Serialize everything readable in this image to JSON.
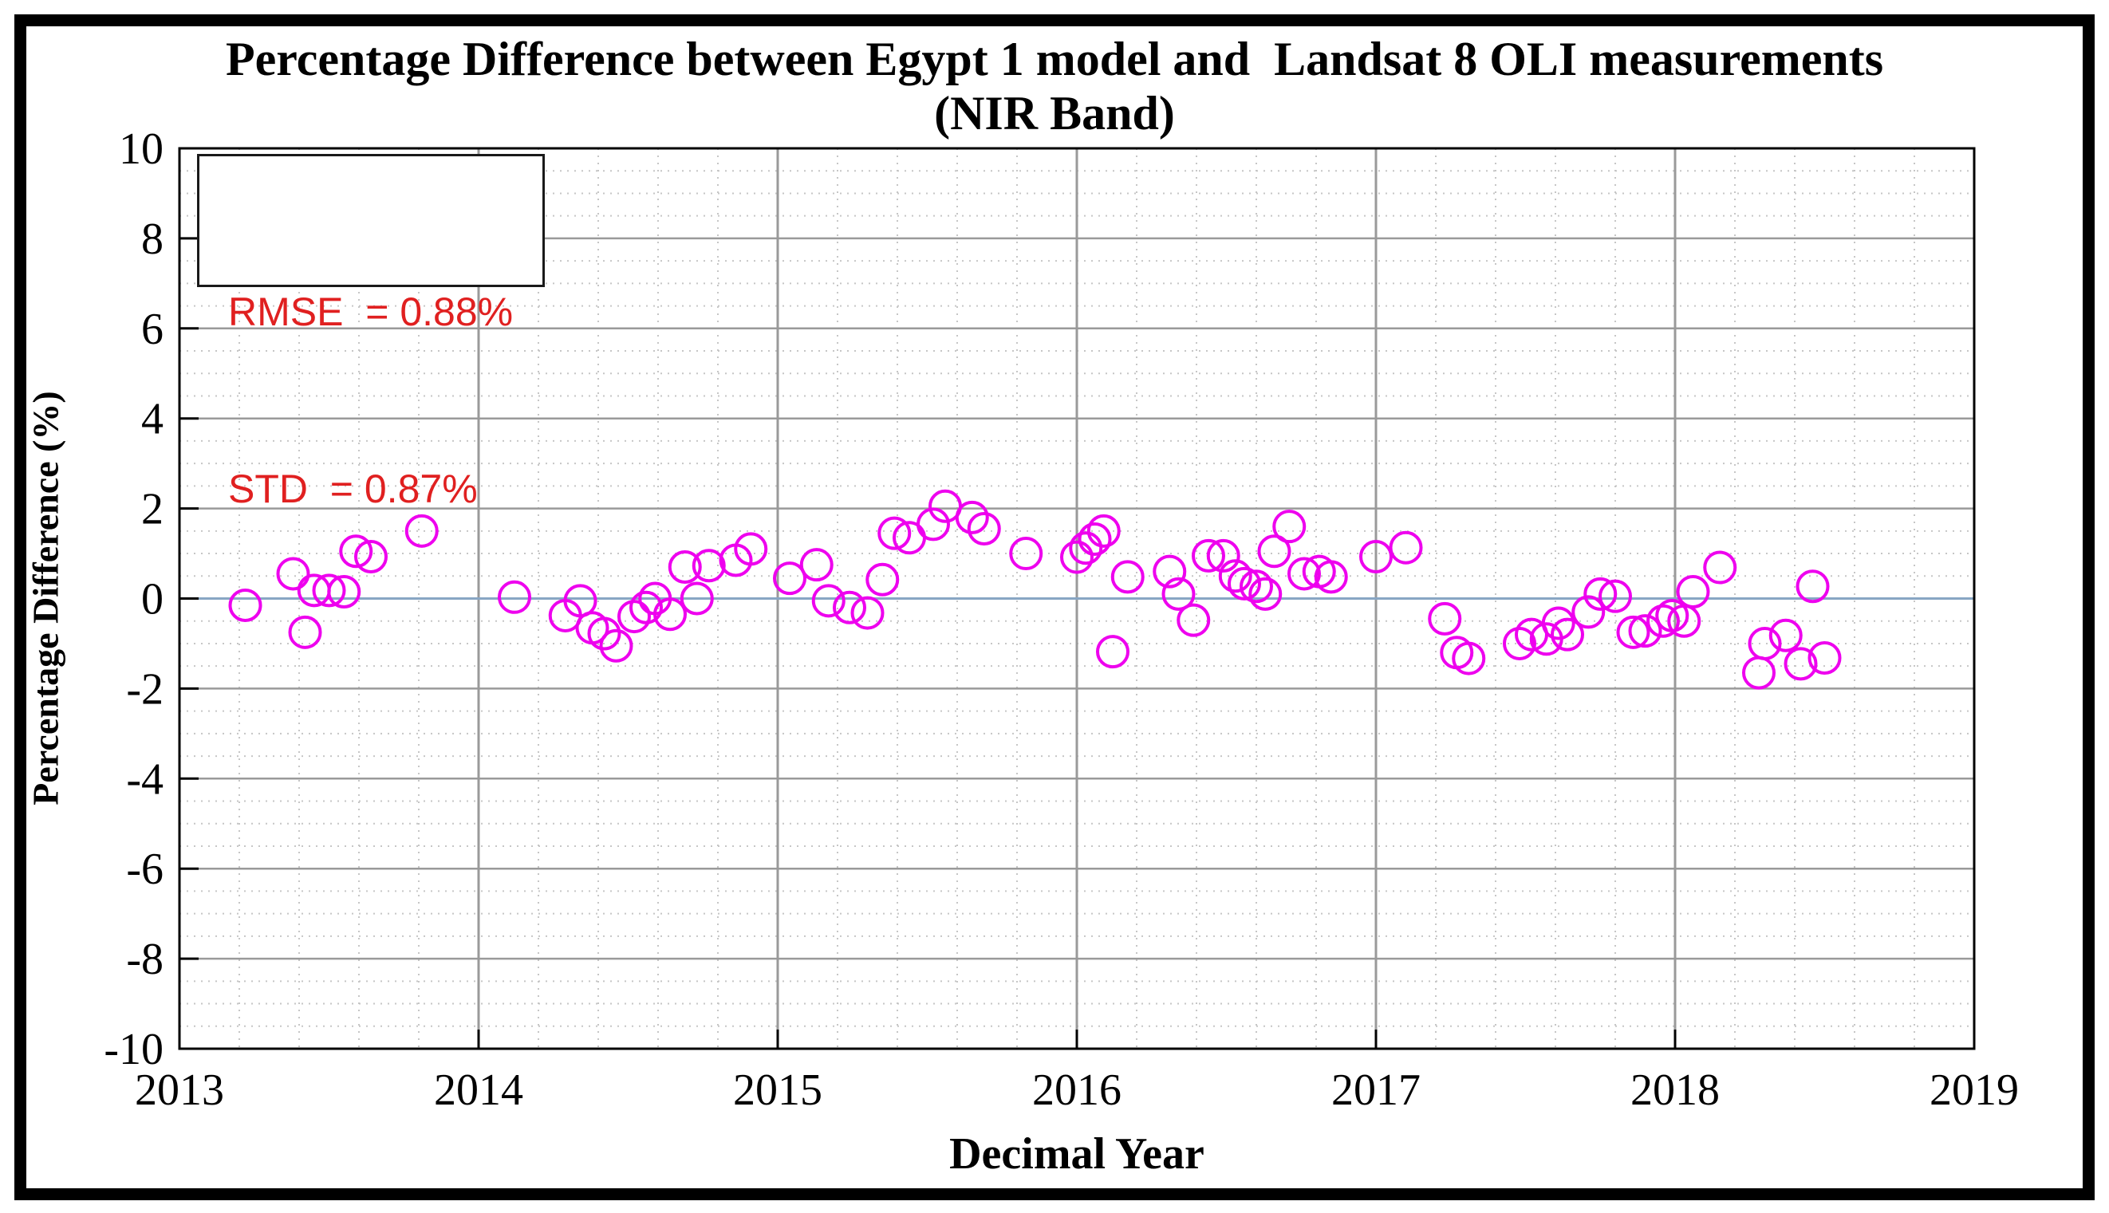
{
  "chart_data": {
    "type": "scatter",
    "title": "Percentage Difference between Egypt 1 model and  Landsat 8 OLI measurements",
    "subtitle": "(NIR Band)",
    "xlabel": "Decimal Year",
    "ylabel": "Percentage Difference (%)",
    "xlim": [
      2013,
      2019
    ],
    "ylim": [
      -10,
      10
    ],
    "x_ticks": [
      2013,
      2014,
      2015,
      2016,
      2017,
      2018,
      2019
    ],
    "y_ticks": [
      -10,
      -8,
      -6,
      -4,
      -2,
      0,
      2,
      4,
      6,
      8,
      10
    ],
    "x_minor_step": 0.2,
    "y_minor_step": 0.5,
    "grid": true,
    "legend": "none",
    "marker": {
      "shape": "open-circle",
      "color": "#EE00EE",
      "radius_px": 19,
      "stroke_px": 4
    },
    "colors": {
      "major_grid": "#9a9a9a",
      "minor_grid": "#c6c6c6",
      "zero_line": "#88a6c4",
      "axis": "#000000",
      "tick_label": "#000000"
    },
    "points": [
      [
        2013.22,
        -0.15
      ],
      [
        2013.38,
        0.55
      ],
      [
        2013.42,
        -0.75
      ],
      [
        2013.45,
        0.18
      ],
      [
        2013.5,
        0.18
      ],
      [
        2013.55,
        0.15
      ],
      [
        2013.59,
        1.05
      ],
      [
        2013.64,
        0.93
      ],
      [
        2013.81,
        1.5
      ],
      [
        2014.12,
        0.03
      ],
      [
        2014.29,
        -0.38
      ],
      [
        2014.34,
        -0.05
      ],
      [
        2014.38,
        -0.65
      ],
      [
        2014.42,
        -0.78
      ],
      [
        2014.46,
        -1.05
      ],
      [
        2014.52,
        -0.4
      ],
      [
        2014.56,
        -0.2
      ],
      [
        2014.59,
        0.0
      ],
      [
        2014.64,
        -0.35
      ],
      [
        2014.69,
        0.7
      ],
      [
        2014.73,
        0.0
      ],
      [
        2014.77,
        0.73
      ],
      [
        2014.86,
        0.85
      ],
      [
        2014.91,
        1.1
      ],
      [
        2015.04,
        0.45
      ],
      [
        2015.13,
        0.75
      ],
      [
        2015.17,
        -0.05
      ],
      [
        2015.24,
        -0.2
      ],
      [
        2015.3,
        -0.32
      ],
      [
        2015.35,
        0.42
      ],
      [
        2015.39,
        1.45
      ],
      [
        2015.44,
        1.35
      ],
      [
        2015.52,
        1.65
      ],
      [
        2015.56,
        2.05
      ],
      [
        2015.65,
        1.8
      ],
      [
        2015.69,
        1.55
      ],
      [
        2015.83,
        1.0
      ],
      [
        2016.0,
        0.92
      ],
      [
        2016.03,
        1.12
      ],
      [
        2016.06,
        1.32
      ],
      [
        2016.09,
        1.5
      ],
      [
        2016.12,
        -1.18
      ],
      [
        2016.17,
        0.48
      ],
      [
        2016.31,
        0.6
      ],
      [
        2016.34,
        0.1
      ],
      [
        2016.39,
        -0.48
      ],
      [
        2016.44,
        0.95
      ],
      [
        2016.49,
        0.95
      ],
      [
        2016.53,
        0.5
      ],
      [
        2016.56,
        0.33
      ],
      [
        2016.6,
        0.27
      ],
      [
        2016.63,
        0.1
      ],
      [
        2016.66,
        1.05
      ],
      [
        2016.71,
        1.6
      ],
      [
        2016.76,
        0.55
      ],
      [
        2016.81,
        0.6
      ],
      [
        2016.85,
        0.48
      ],
      [
        2017.0,
        0.93
      ],
      [
        2017.1,
        1.13
      ],
      [
        2017.23,
        -0.45
      ],
      [
        2017.27,
        -1.2
      ],
      [
        2017.31,
        -1.33
      ],
      [
        2017.48,
        -1.0
      ],
      [
        2017.52,
        -0.8
      ],
      [
        2017.57,
        -0.9
      ],
      [
        2017.61,
        -0.55
      ],
      [
        2017.64,
        -0.8
      ],
      [
        2017.71,
        -0.3
      ],
      [
        2017.75,
        0.1
      ],
      [
        2017.8,
        0.05
      ],
      [
        2017.86,
        -0.75
      ],
      [
        2017.9,
        -0.72
      ],
      [
        2017.96,
        -0.5
      ],
      [
        2017.99,
        -0.38
      ],
      [
        2018.03,
        -0.5
      ],
      [
        2018.06,
        0.15
      ],
      [
        2018.15,
        0.69
      ],
      [
        2018.28,
        -1.65
      ],
      [
        2018.3,
        -1.0
      ],
      [
        2018.37,
        -0.82
      ],
      [
        2018.42,
        -1.45
      ],
      [
        2018.46,
        0.27
      ],
      [
        2018.5,
        -1.32
      ]
    ]
  },
  "annotation": {
    "rmse": "RMSE  = 0.88%",
    "std": "STD  = 0.87%",
    "text_color": "#e02020"
  }
}
